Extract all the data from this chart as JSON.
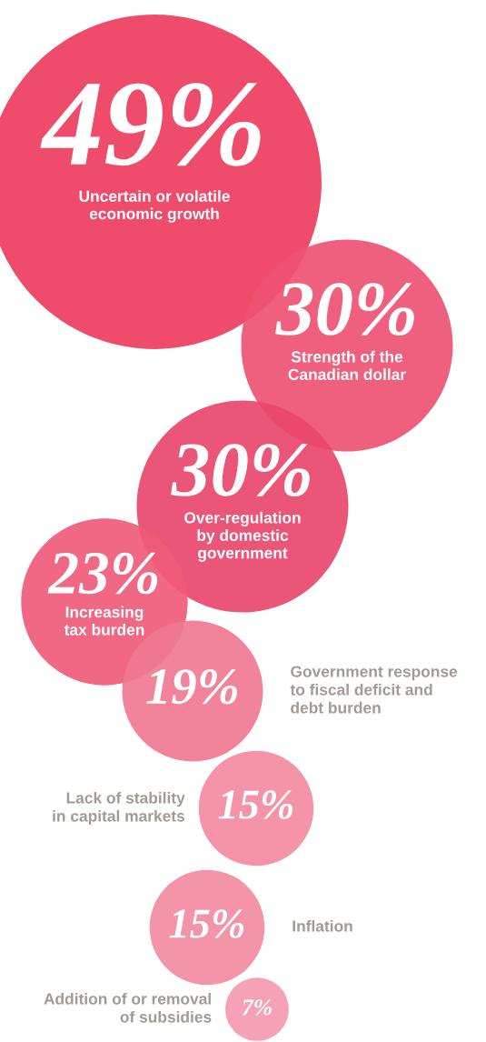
{
  "chart_data": {
    "type": "other",
    "categories": [
      "Uncertain or volatile\neconomic growth",
      "Strength of the\nCanadian dollar",
      "Over-regulation\nby domestic\ngovernment",
      "Increasing\ntax burden",
      "Government response\nto fiscal deficit and\ndebt burden",
      "Lack of stability\nin capital markets",
      "Inflation",
      "Addition of or removal\nof subsidies"
    ],
    "values": [
      49,
      30,
      30,
      23,
      19,
      15,
      15,
      7
    ],
    "value_labels": [
      "49%",
      "30%",
      "30%",
      "23%",
      "19%",
      "15%",
      "15%",
      "7%"
    ],
    "colors": [
      "#ee3d5f",
      "#ee5173",
      "#e9476b",
      "#ef5b79",
      "#f07891",
      "#f48aa1",
      "#f38ba2",
      "#f59ab0"
    ]
  }
}
